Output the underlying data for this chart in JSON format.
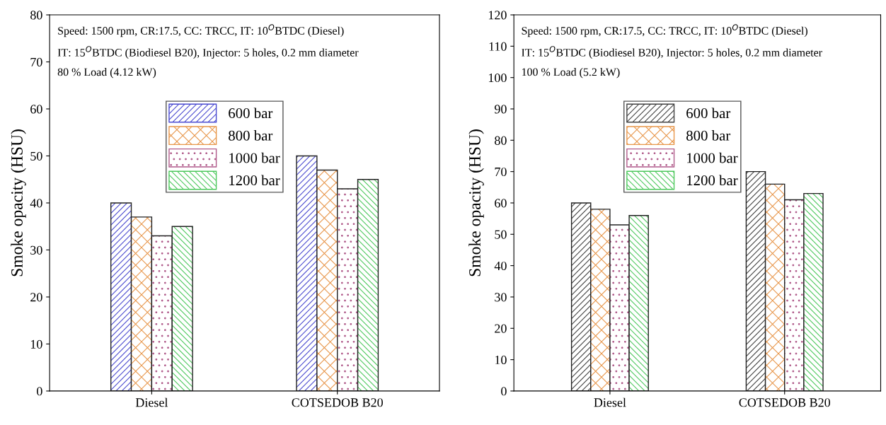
{
  "chart_data": [
    {
      "type": "bar",
      "ylabel": "Smoke opacity (HSU)",
      "categories": [
        "Diesel",
        "COTSEDOB B20"
      ],
      "series": [
        {
          "name": "600 bar",
          "color": "#4a4ad0",
          "values": [
            40,
            50
          ]
        },
        {
          "name": "800 bar",
          "color": "#e8964a",
          "values": [
            37,
            47
          ]
        },
        {
          "name": "1000 bar",
          "color": "#b05a8a",
          "values": [
            33,
            43
          ]
        },
        {
          "name": "1200 bar",
          "color": "#4cc85c",
          "values": [
            35,
            45
          ]
        }
      ],
      "ylim": [
        0,
        80
      ],
      "yticks": [
        0,
        10,
        20,
        30,
        40,
        50,
        60,
        70,
        80
      ],
      "legend": "top",
      "grid": false,
      "annotations": [
        "Speed: 1500 rpm, CR:17.5, CC: TRCC, IT: 10$^{O}$BTDC (Diesel)",
        "IT: 15$^{O}$BTDC (Biodiesel B20), Injector: 5 holes, 0.2 mm diameter",
        "80 % Load (4.12 kW)"
      ]
    },
    {
      "type": "bar",
      "ylabel": "Smoke opacity (HSU)",
      "categories": [
        "Diesel",
        "COTSEDOB B20"
      ],
      "series": [
        {
          "name": "600 bar",
          "color": "#404040",
          "values": [
            60,
            70
          ]
        },
        {
          "name": "800 bar",
          "color": "#e8964a",
          "values": [
            58,
            66
          ]
        },
        {
          "name": "1000 bar",
          "color": "#b05a8a",
          "values": [
            53,
            61
          ]
        },
        {
          "name": "1200 bar",
          "color": "#4cc85c",
          "values": [
            56,
            63
          ]
        }
      ],
      "ylim": [
        0,
        120
      ],
      "yticks": [
        0,
        10,
        20,
        30,
        40,
        50,
        60,
        70,
        80,
        90,
        100,
        110,
        120
      ],
      "legend": "top",
      "grid": false,
      "annotations": [
        "Speed: 1500 rpm, CR:17.5, CC: TRCC, IT: 10$^{O}$BTDC (Diesel)",
        "IT: 15$^{O}$BTDC (Biodiesel B20), Injector: 5 holes, 0.2 mm diameter",
        "100 % Load (5.2 kW)"
      ]
    }
  ]
}
